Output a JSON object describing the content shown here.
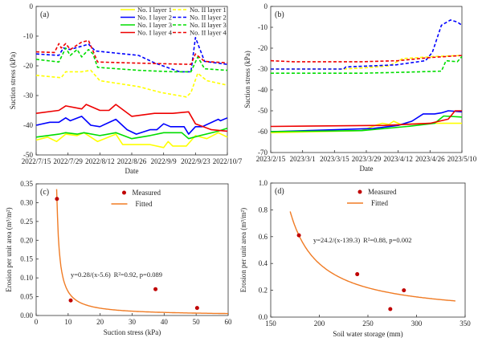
{
  "chart_data": [
    {
      "id": "a",
      "type": "line",
      "panel_label": "(a)",
      "xlabel": "Date",
      "ylabel": "Suction stress (kPa)",
      "xlim": [
        0,
        84
      ],
      "ylim": [
        -50,
        0
      ],
      "yticks": [
        0,
        -10,
        -20,
        -30,
        -40,
        -50
      ],
      "xticks": [
        {
          "day": 0,
          "label": "2022/7/15"
        },
        {
          "day": 14,
          "label": "2022/7/29"
        },
        {
          "day": 28,
          "label": "2022/8/12"
        },
        {
          "day": 42,
          "label": "2022/8/26"
        },
        {
          "day": 56,
          "label": "2022/9/9"
        },
        {
          "day": 70,
          "label": "2022/9/23"
        },
        {
          "day": 84,
          "label": "2022/10/7"
        }
      ],
      "legend_position": "top-right",
      "series": [
        {
          "name": "No. I layer 1",
          "color": "#ffff00",
          "dash": false,
          "points": [
            [
              0,
              -45
            ],
            [
              5,
              -44
            ],
            [
              9,
              -45.5
            ],
            [
              13,
              -43
            ],
            [
              18,
              -43.5
            ],
            [
              21,
              -42.5
            ],
            [
              27,
              -45.5
            ],
            [
              35,
              -43
            ],
            [
              38,
              -46.5
            ],
            [
              50,
              -46.5
            ],
            [
              56,
              -47.5
            ],
            [
              58,
              -45.5
            ],
            [
              60,
              -47
            ],
            [
              66,
              -47
            ],
            [
              70,
              -43.5
            ],
            [
              75,
              -44.5
            ],
            [
              80,
              -42.5
            ],
            [
              84,
              -44
            ]
          ]
        },
        {
          "name": "No. II layer 1",
          "color": "#ffff00",
          "dash": true,
          "points": [
            [
              0,
              -23.2
            ],
            [
              11,
              -24
            ],
            [
              13,
              -22
            ],
            [
              20,
              -22
            ],
            [
              24,
              -21.5
            ],
            [
              28,
              -25
            ],
            [
              45,
              -27
            ],
            [
              55,
              -29
            ],
            [
              66,
              -30.5
            ],
            [
              68,
              -29
            ],
            [
              71,
              -22.5
            ],
            [
              75,
              -25
            ],
            [
              84,
              -26.5
            ]
          ]
        },
        {
          "name": "No. I layer 2",
          "color": "#0000ff",
          "dash": false,
          "points": [
            [
              0,
              -40
            ],
            [
              6,
              -39
            ],
            [
              10,
              -39
            ],
            [
              13,
              -37.5
            ],
            [
              15,
              -38.5
            ],
            [
              20,
              -37
            ],
            [
              24,
              -40
            ],
            [
              28,
              -40.5
            ],
            [
              35,
              -38
            ],
            [
              40,
              -41.5
            ],
            [
              44,
              -43
            ],
            [
              50,
              -41.5
            ],
            [
              53,
              -41.5
            ],
            [
              56,
              -39.5
            ],
            [
              59,
              -40.5
            ],
            [
              65,
              -40.5
            ],
            [
              67,
              -43
            ],
            [
              70,
              -40.5
            ],
            [
              73,
              -40.5
            ],
            [
              80,
              -38
            ],
            [
              81,
              -38.5
            ],
            [
              84,
              -37.5
            ]
          ]
        },
        {
          "name": "No. II layer 2",
          "color": "#0000ff",
          "dash": true,
          "points": [
            [
              0,
              -16
            ],
            [
              10,
              -16.5
            ],
            [
              12,
              -14
            ],
            [
              15,
              -14.5
            ],
            [
              23,
              -12.7
            ],
            [
              26,
              -15
            ],
            [
              45,
              -16.5
            ],
            [
              52,
              -19
            ],
            [
              63,
              -22
            ],
            [
              68,
              -22
            ],
            [
              70,
              -10.5
            ],
            [
              74,
              -18.5
            ],
            [
              84,
              -19.5
            ]
          ]
        },
        {
          "name": "No. I layer 3",
          "color": "#00dd00",
          "dash": false,
          "points": [
            [
              0,
              -44
            ],
            [
              10,
              -43
            ],
            [
              13,
              -42.5
            ],
            [
              18,
              -43
            ],
            [
              21,
              -42.5
            ],
            [
              28,
              -43.5
            ],
            [
              35,
              -42.5
            ],
            [
              42,
              -44.5
            ],
            [
              50,
              -43.5
            ],
            [
              56,
              -42.5
            ],
            [
              64,
              -42.5
            ],
            [
              67,
              -44.5
            ],
            [
              72,
              -43.5
            ],
            [
              80,
              -42
            ],
            [
              84,
              -41
            ]
          ]
        },
        {
          "name": "No. II layer 3",
          "color": "#00dd00",
          "dash": true,
          "points": [
            [
              0,
              -17.8
            ],
            [
              10,
              -18.7
            ],
            [
              13,
              -14
            ],
            [
              15,
              -16.5
            ],
            [
              18,
              -14.5
            ],
            [
              20,
              -17
            ],
            [
              23,
              -14.5
            ],
            [
              25,
              -16
            ],
            [
              27,
              -20.5
            ],
            [
              45,
              -21.5
            ],
            [
              60,
              -22
            ],
            [
              68,
              -22
            ],
            [
              71,
              -17
            ],
            [
              74,
              -21
            ],
            [
              84,
              -21.5
            ]
          ]
        },
        {
          "name": "No. I layer 4",
          "color": "#ee0000",
          "dash": false,
          "points": [
            [
              0,
              -36
            ],
            [
              10,
              -35
            ],
            [
              13,
              -33.5
            ],
            [
              20,
              -34.5
            ],
            [
              22,
              -33
            ],
            [
              28,
              -35
            ],
            [
              32,
              -35
            ],
            [
              35,
              -33
            ],
            [
              42,
              -37
            ],
            [
              52,
              -36
            ],
            [
              60,
              -36
            ],
            [
              67,
              -35.5
            ],
            [
              70,
              -39.5
            ],
            [
              77,
              -41.5
            ],
            [
              84,
              -42
            ]
          ]
        },
        {
          "name": "No. II layer 4",
          "color": "#ee0000",
          "dash": true,
          "points": [
            [
              0,
              -15.3
            ],
            [
              8,
              -15.5
            ],
            [
              10,
              -12.5
            ],
            [
              11,
              -14
            ],
            [
              13,
              -12.5
            ],
            [
              15,
              -14.5
            ],
            [
              20,
              -12
            ],
            [
              23,
              -11.5
            ],
            [
              25,
              -15
            ],
            [
              27,
              -18.7
            ],
            [
              40,
              -19
            ],
            [
              68,
              -19.5
            ],
            [
              70,
              -16
            ],
            [
              74,
              -18.5
            ],
            [
              84,
              -19
            ]
          ]
        }
      ]
    },
    {
      "id": "b",
      "type": "line",
      "panel_label": "(b)",
      "xlabel": "Date",
      "ylabel": "Suction stress (kPa)",
      "xlim": [
        0,
        84
      ],
      "ylim": [
        -70,
        0
      ],
      "yticks": [
        0,
        -10,
        -20,
        -30,
        -40,
        -50,
        -60,
        -70
      ],
      "xticks": [
        {
          "day": 0,
          "label": "2023/2/15"
        },
        {
          "day": 14,
          "label": "2023/3/1"
        },
        {
          "day": 28,
          "label": "2023/3/15"
        },
        {
          "day": 42,
          "label": "2023/3/29"
        },
        {
          "day": 56,
          "label": "2023/4/12"
        },
        {
          "day": 70,
          "label": "2023/4/26"
        },
        {
          "day": 84,
          "label": "2023/5/10"
        }
      ],
      "series": [
        {
          "name": "No. I layer 1",
          "color": "#ffff00",
          "dash": false,
          "points": [
            [
              0,
              -60.5
            ],
            [
              40,
              -59.5
            ],
            [
              46,
              -57
            ],
            [
              49,
              -56
            ],
            [
              52,
              -56.5
            ],
            [
              54,
              -55
            ],
            [
              57,
              -56.5
            ],
            [
              70,
              -56
            ],
            [
              84,
              -56
            ]
          ]
        },
        {
          "name": "No. II layer 1",
          "color": "#ffff00",
          "dash": true,
          "points": [
            [
              0,
              -30
            ],
            [
              32,
              -30
            ],
            [
              40,
              -29.5
            ],
            [
              52,
              -28.5
            ],
            [
              58,
              -25
            ],
            [
              72,
              -24
            ],
            [
              84,
              -23.5
            ]
          ]
        },
        {
          "name": "No. I layer 2",
          "color": "#0000ff",
          "dash": false,
          "points": [
            [
              0,
              -60
            ],
            [
              30,
              -59
            ],
            [
              45,
              -58.5
            ],
            [
              56,
              -57
            ],
            [
              62,
              -55
            ],
            [
              67,
              -51.5
            ],
            [
              72,
              -51.5
            ],
            [
              75,
              -51
            ],
            [
              78,
              -50
            ],
            [
              84,
              -50.5
            ]
          ]
        },
        {
          "name": "No. II layer 2",
          "color": "#0000ff",
          "dash": true,
          "points": [
            [
              0,
              -30
            ],
            [
              32,
              -30
            ],
            [
              33,
              -29
            ],
            [
              55,
              -28
            ],
            [
              68,
              -26
            ],
            [
              71,
              -22
            ],
            [
              75,
              -9
            ],
            [
              79,
              -6.5
            ],
            [
              82,
              -7.5
            ],
            [
              84,
              -9
            ]
          ]
        },
        {
          "name": "No. I layer 3",
          "color": "#00dd00",
          "dash": false,
          "points": [
            [
              0,
              -60
            ],
            [
              40,
              -59.5
            ],
            [
              60,
              -57.5
            ],
            [
              72,
              -56
            ],
            [
              76,
              -52.5
            ],
            [
              84,
              -53
            ]
          ]
        },
        {
          "name": "No. II layer 3",
          "color": "#00dd00",
          "dash": true,
          "points": [
            [
              0,
              -32
            ],
            [
              40,
              -32
            ],
            [
              60,
              -31.5
            ],
            [
              75,
              -31
            ],
            [
              77,
              -26
            ],
            [
              82,
              -26.5
            ],
            [
              84,
              -24
            ]
          ]
        },
        {
          "name": "No. I layer 4",
          "color": "#ee0000",
          "dash": false,
          "points": [
            [
              0,
              -57.5
            ],
            [
              50,
              -57
            ],
            [
              70,
              -56
            ],
            [
              78,
              -54
            ],
            [
              81,
              -50
            ],
            [
              84,
              -50
            ]
          ]
        },
        {
          "name": "No. II layer 4",
          "color": "#ee0000",
          "dash": true,
          "points": [
            [
              0,
              -26
            ],
            [
              10,
              -26.5
            ],
            [
              40,
              -26.5
            ],
            [
              56,
              -26
            ],
            [
              70,
              -24.5
            ],
            [
              84,
              -23.5
            ]
          ]
        }
      ]
    },
    {
      "id": "c",
      "type": "scatter",
      "panel_label": "(c)",
      "xlabel": "Suction stress (kPa)",
      "ylabel": "Erosion per unit area (m³/m²)",
      "xlim": [
        0,
        60
      ],
      "ylim": [
        0,
        0.35
      ],
      "xticks": [
        0,
        10,
        20,
        30,
        40,
        50,
        60
      ],
      "yticks": [
        "0.00",
        "0.05",
        "0.10",
        "0.15",
        "0.20",
        "0.25",
        "0.30",
        "0.35"
      ],
      "legend": {
        "measured": "Measured",
        "fitted": "Fitted"
      },
      "legend_position": "top-center",
      "measured": [
        [
          6.5,
          0.31
        ],
        [
          10.8,
          0.04
        ],
        [
          37.3,
          0.07
        ],
        [
          50.3,
          0.02
        ]
      ],
      "fit": {
        "a": 0.28,
        "b": 5.6,
        "from": 6.4,
        "to": 60
      },
      "equation": "y=0.28/(x-5.6)",
      "stats": "R²=0.92, p=0.089",
      "marker_color": "#c00000",
      "fit_color": "#f07b24"
    },
    {
      "id": "d",
      "type": "scatter",
      "panel_label": "(d)",
      "xlabel": "Soil water storage (mm)",
      "ylabel": "Erosion per unit area (m³/m²)",
      "xlim": [
        150,
        350
      ],
      "ylim": [
        0,
        1.0
      ],
      "xticks": [
        150,
        200,
        250,
        300,
        350
      ],
      "yticks": [
        "0.0",
        "0.2",
        "0.4",
        "0.6",
        "0.8",
        "1.0"
      ],
      "legend": {
        "measured": "Measured",
        "fitted": "Fitted"
      },
      "legend_position": "top-center",
      "measured": [
        [
          179,
          0.61
        ],
        [
          239,
          0.32
        ],
        [
          273,
          0.06
        ],
        [
          287,
          0.2
        ]
      ],
      "fit": {
        "a": 24.2,
        "b": 139.3,
        "from": 170,
        "to": 340
      },
      "equation": "y=24.2/(x-139.3)",
      "stats": "R²=0.88, p=0.002",
      "marker_color": "#c00000",
      "fit_color": "#f07b24"
    }
  ]
}
